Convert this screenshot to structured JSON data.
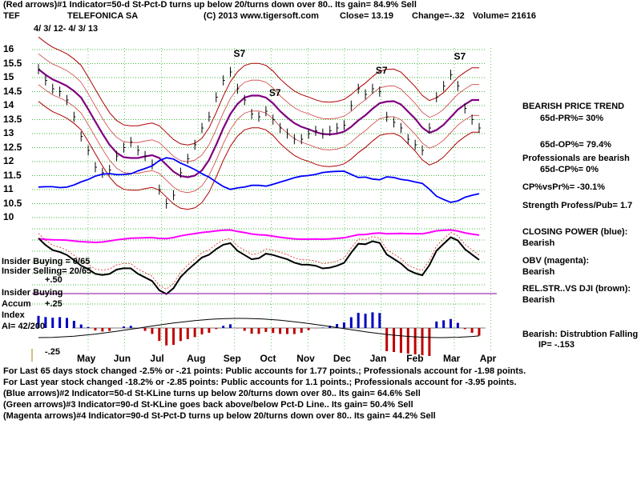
{
  "header": {
    "line1": "(Red arrows)#1 Indicator=50-d St-Pct-D turns up below 20/turns down over 80.. Its gain= 84.9% Sell",
    "ticker": "TEF",
    "company": "TELEFONICA SA",
    "copyright": "(C) 2013 www.tigersoft.com",
    "close": "Close=  13.19",
    "change": "Change=-.32",
    "volume": "Volume=  21616",
    "daterange": "4/ 3/ 12-  4/ 3/ 13"
  },
  "chart_data": {
    "type": "line",
    "title": "TELEFONICA SA (TEF) daily price with bands, Closing Power, OBV, Accum Index",
    "x_months": [
      "May",
      "Jun",
      "Jul",
      "Aug",
      "Sep",
      "Oct",
      "Nov",
      "Dec",
      "Jan",
      "Feb",
      "Mar",
      "Apr"
    ],
    "y_ticks": [
      "16",
      "15.5",
      "15",
      "14.5",
      "14",
      "13.5",
      "13",
      "12.5",
      "12",
      "11.5",
      "11",
      "10.5",
      "10"
    ],
    "ylim": [
      10,
      16
    ],
    "price_close": [
      15.3,
      14.9,
      14.6,
      14.5,
      14.2,
      13.6,
      12.9,
      12.4,
      11.8,
      11.6,
      11.7,
      12.2,
      12.5,
      12.7,
      12.4,
      12.2,
      11.9,
      11.0,
      10.5,
      10.8,
      11.6,
      12.1,
      12.6,
      13.2,
      13.6,
      14.3,
      14.9,
      15.2,
      14.6,
      14.2,
      13.7,
      13.6,
      13.8,
      13.5,
      13.2,
      13.0,
      12.8,
      12.8,
      13.0,
      13.1,
      13.0,
      13.1,
      13.2,
      13.3,
      14.0,
      14.6,
      14.4,
      14.6,
      14.5,
      13.6,
      13.4,
      13.2,
      12.8,
      12.6,
      12.4,
      13.2,
      14.3,
      14.7,
      15.1,
      14.7,
      13.9,
      13.5,
      13.2
    ],
    "series": [
      {
        "name": "Price close",
        "color": "#000000"
      },
      {
        "name": "Upper band",
        "color": "#cc0000"
      },
      {
        "name": "Lower band",
        "color": "#cc0000"
      },
      {
        "name": "Moving average",
        "color": "#800080"
      },
      {
        "name": "Closing Power",
        "color": "#0000ff"
      },
      {
        "name": "OBV",
        "color": "#ff00ff"
      },
      {
        "name": "Rel Strength vs DJI",
        "color": "#000000"
      }
    ],
    "signals": [
      {
        "label": "S7",
        "near": "Sep"
      },
      {
        "label": "S7",
        "near": "Oct"
      },
      {
        "label": "S7",
        "near": "Jan"
      },
      {
        "label": "S7",
        "near": "Mar"
      }
    ]
  },
  "left_labels": {
    "insider_buying": "Insider Buying = 0/65",
    "insider_selling": "Insider Selling= 20/65",
    "plus50": "+.50",
    "insider_buying2": "Insider Buying",
    "accum": "Accum",
    "plus25": "+.25",
    "index": "Index",
    "ai": "AI= 42/200",
    "minus25": "-.25"
  },
  "right_panel": {
    "trend": "BEARISH PRICE TREND",
    "pr": "65d-PR%= 30%",
    "op": "65d-OP%= 79.4%",
    "prof": "Professionals are bearish",
    "cp": "65d-CP%= 0%",
    "cpvspr": "CP%vsPr%= -30.1%",
    "strength": "Strength Profess/Pub= 1.7",
    "closing_power": "CLOSING POWER (blue):",
    "closing_power_val": "Bearish",
    "obv": "OBV (magenta):",
    "obv_val": "Bearish",
    "relstr": "REL.STR..VS DJI (brown):",
    "relstr_val": "Bearish",
    "distrib": "Bearish:  Distrubtion Falling",
    "ip": "IP= -.153"
  },
  "footer": {
    "line1": "For Last 65 days stock changed -2.5% or -.21 points:  Public accounts for  1.77 points.;  Professionals account for -1.98 points.",
    "line2": "For Last year stock changed -18.2% or -2.85 points:  Public accounts for  1.1 points.;  Professionals account for -3.95 points.",
    "line3": "(Blue arrows)#2 Indicator=50-d St-KLine turns up below 20/turns down over 80.. Its gain= 64.6% Sell",
    "line4": "(Green arrows)#3 Indicator=90-d St-KLine goes back above/below Pct-D Line.. Its gain= 50.4% Sell",
    "line5": "(Magenta arrows)#4 Indicator=90-d St-Pct-D turns up below 20/turns down over 80.. Its gain= 44.2% Sell"
  }
}
